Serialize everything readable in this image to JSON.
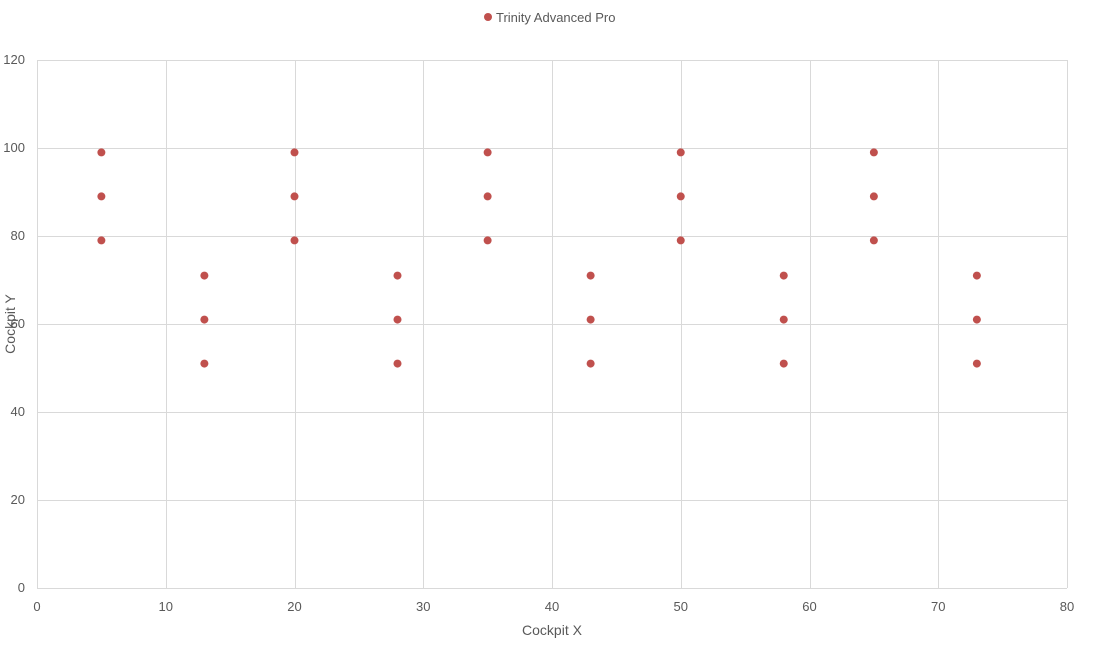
{
  "chart_data": {
    "type": "scatter",
    "xlabel": "Cockpit X",
    "ylabel": "Cockpit Y",
    "xlim": [
      0,
      80
    ],
    "ylim": [
      0,
      120
    ],
    "x_ticks": [
      0,
      10,
      20,
      30,
      40,
      50,
      60,
      70,
      80
    ],
    "y_ticks": [
      0,
      20,
      40,
      60,
      80,
      100,
      120
    ],
    "grid": true,
    "legend_position": "top-center",
    "series": [
      {
        "name": "Trinity Advanced Pro",
        "color": "#c0504d",
        "points": [
          {
            "x": 5,
            "y": 99
          },
          {
            "x": 5,
            "y": 89
          },
          {
            "x": 5,
            "y": 79
          },
          {
            "x": 13,
            "y": 71
          },
          {
            "x": 13,
            "y": 61
          },
          {
            "x": 13,
            "y": 51
          },
          {
            "x": 20,
            "y": 99
          },
          {
            "x": 20,
            "y": 89
          },
          {
            "x": 20,
            "y": 79
          },
          {
            "x": 28,
            "y": 71
          },
          {
            "x": 28,
            "y": 61
          },
          {
            "x": 28,
            "y": 51
          },
          {
            "x": 35,
            "y": 99
          },
          {
            "x": 35,
            "y": 89
          },
          {
            "x": 35,
            "y": 79
          },
          {
            "x": 43,
            "y": 71
          },
          {
            "x": 43,
            "y": 61
          },
          {
            "x": 43,
            "y": 51
          },
          {
            "x": 50,
            "y": 99
          },
          {
            "x": 50,
            "y": 89
          },
          {
            "x": 50,
            "y": 79
          },
          {
            "x": 58,
            "y": 71
          },
          {
            "x": 58,
            "y": 61
          },
          {
            "x": 58,
            "y": 51
          },
          {
            "x": 65,
            "y": 99
          },
          {
            "x": 65,
            "y": 89
          },
          {
            "x": 65,
            "y": 79
          },
          {
            "x": 73,
            "y": 71
          },
          {
            "x": 73,
            "y": 61
          },
          {
            "x": 73,
            "y": 51
          }
        ]
      }
    ]
  }
}
